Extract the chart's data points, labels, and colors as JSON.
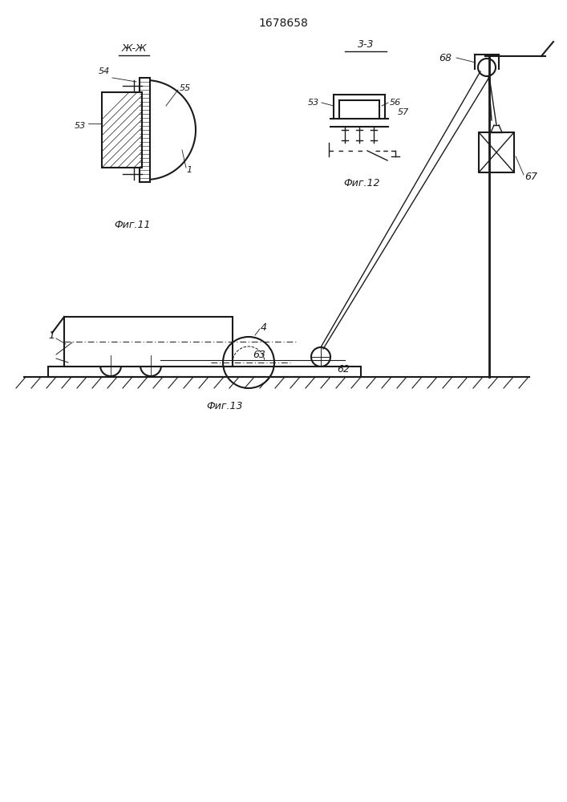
{
  "title": "1678658",
  "fig11_label": "Фиг.11",
  "fig12_label": "Фиг.12",
  "fig13_label": "Фиг.13",
  "section_zz": "Ж-Ж",
  "section_33": "3-3",
  "bg_color": "#ffffff",
  "line_color": "#1a1a1a"
}
